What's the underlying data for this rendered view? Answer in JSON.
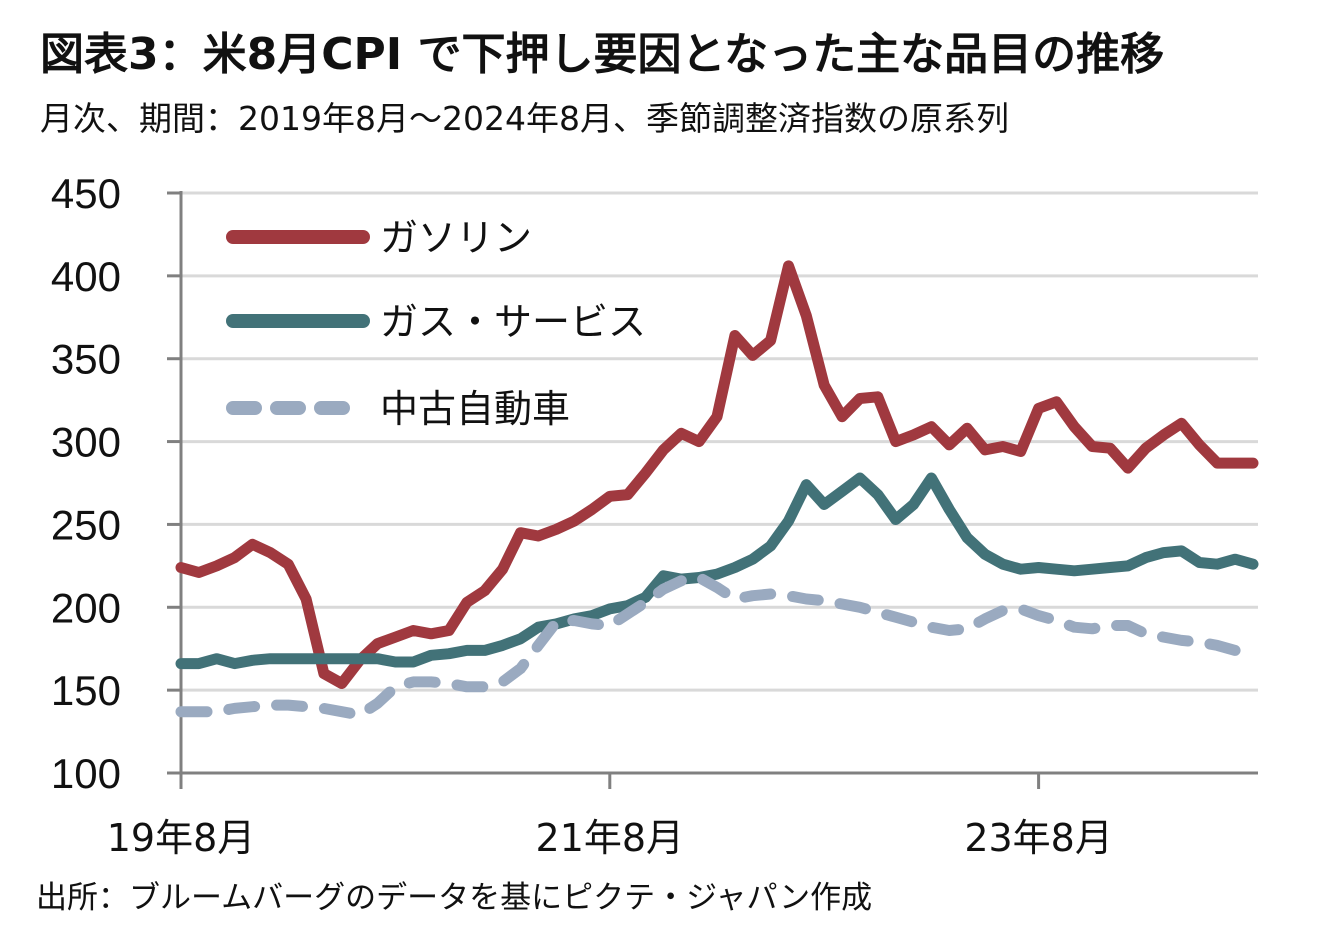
{
  "header": {
    "title": "図表3：米8月CPI で下押し要因となった主な品目の推移",
    "subtitle": "月次、期間：2019年8月～2024年8月、季節調整済指数の原系列"
  },
  "footer": {
    "source": "出所：ブルームバーグのデータを基にピクテ・ジャパン作成"
  },
  "chart_data": {
    "type": "line",
    "title": "図表3：米8月CPI で下押し要因となった主な品目の推移",
    "subtitle": "月次、期間：2019年8月～2024年8月、季節調整済指数の原系列",
    "xlabel": "",
    "ylabel": "",
    "ylim": [
      100,
      450
    ],
    "yticks": [
      100,
      150,
      200,
      250,
      300,
      350,
      400,
      450
    ],
    "ytick_labels": [
      "100",
      "150",
      "200",
      "250",
      "300",
      "350",
      "400",
      "450"
    ],
    "x_start": "2019-08",
    "x_points": 61,
    "xticks": [
      {
        "index": 0,
        "label": "19年8月"
      },
      {
        "index": 24,
        "label": "21年8月"
      },
      {
        "index": 48,
        "label": "23年8月"
      }
    ],
    "grid": true,
    "legend_position": "top-left",
    "series": [
      {
        "name": "ガソリン",
        "color": "#a0393f",
        "style": "solid",
        "values": [
          224,
          221,
          225,
          230,
          238,
          233,
          226,
          205,
          160,
          154,
          168,
          178,
          182,
          186,
          184,
          186,
          203,
          210,
          223,
          245,
          243,
          247,
          252,
          259,
          267,
          268,
          281,
          295,
          305,
          300,
          315,
          364,
          352,
          361,
          406,
          376,
          334,
          315,
          326,
          327,
          300,
          304,
          309,
          298,
          308,
          295,
          297,
          294,
          320,
          324,
          309,
          297,
          296,
          284,
          296,
          304,
          311,
          298,
          287,
          287,
          287
        ]
      },
      {
        "name": "ガス・サービス",
        "color": "#427278",
        "style": "solid",
        "values": [
          166,
          166,
          169,
          166,
          168,
          169,
          169,
          169,
          169,
          169,
          169,
          169,
          167,
          167,
          171,
          172,
          174,
          174,
          177,
          181,
          188,
          190,
          193,
          195,
          199,
          201,
          206,
          219,
          217,
          218,
          220,
          224,
          229,
          237,
          252,
          274,
          262,
          270,
          278,
          268,
          253,
          262,
          278,
          259,
          242,
          232,
          226,
          223,
          224,
          223,
          222,
          223,
          224,
          225,
          230,
          233,
          234,
          227,
          226,
          229,
          226
        ]
      },
      {
        "name": "中古自動車",
        "color": "#9aaac0",
        "style": "dashed",
        "values": [
          137,
          137,
          137,
          139,
          140,
          141,
          141,
          140,
          139,
          137,
          135,
          142,
          152,
          155,
          155,
          154,
          152,
          152,
          155,
          163,
          177,
          191,
          192,
          190,
          189,
          196,
          203,
          211,
          216,
          218,
          212,
          205,
          207,
          208,
          207,
          205,
          204,
          202,
          200,
          197,
          194,
          191,
          188,
          186,
          187,
          193,
          198,
          199,
          195,
          192,
          188,
          187,
          189,
          189,
          184,
          182,
          180,
          179,
          177,
          174,
          171
        ]
      }
    ]
  }
}
